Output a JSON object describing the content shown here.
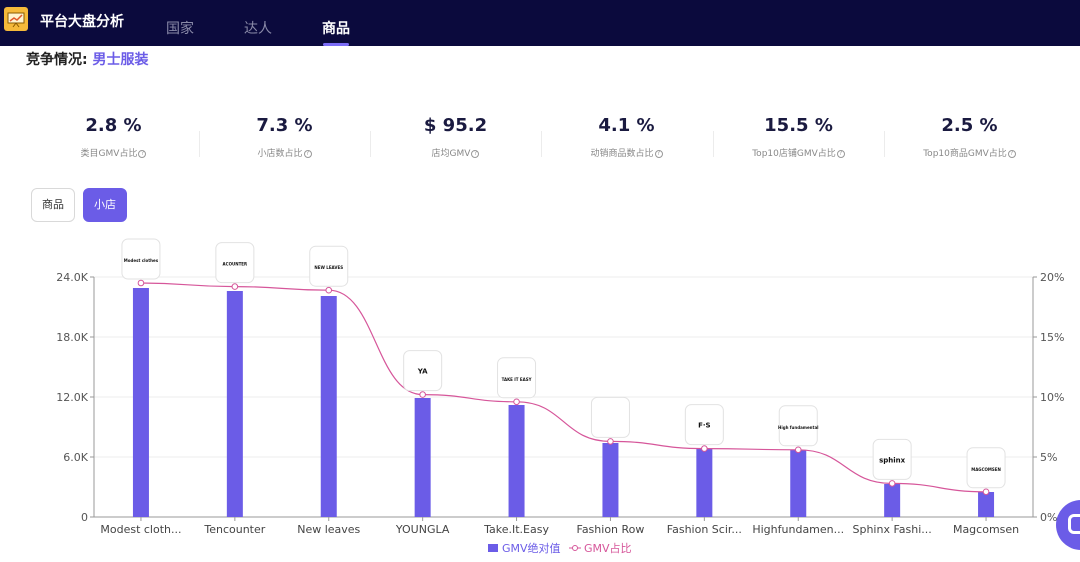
{
  "app": {
    "title": "平台大盘分析"
  },
  "nav": {
    "tabs": [
      "国家",
      "达人",
      "商品"
    ],
    "active": 2
  },
  "section": {
    "label": "竞争情况:",
    "category": "男士服装"
  },
  "stats": [
    {
      "value": "2.8 %",
      "label": "类目GMV占比"
    },
    {
      "value": "7.3 %",
      "label": "小店数占比"
    },
    {
      "value": "$ 95.2",
      "label": "店均GMV"
    },
    {
      "value": "4.1 %",
      "label": "动销商品数占比"
    },
    {
      "value": "15.5 %",
      "label": "Top10店铺GMV占比"
    },
    {
      "value": "2.5 %",
      "label": "Top10商品GMV占比"
    }
  ],
  "toggle": {
    "options": [
      "商品",
      "小店"
    ],
    "active": 1
  },
  "colors": {
    "accent": "#6b5ce7",
    "nav_bg": "#0b0a3d",
    "line": "#d6569a"
  },
  "chart_data": {
    "type": "bar",
    "categories": [
      "Modest cloth...",
      "Tencounter",
      "New leaves",
      "YOUNGLA",
      "Take.It.Easy",
      "Fashion Row",
      "Fashion Scir...",
      "Highfundamen...",
      "Sphinx Fashi...",
      "Magcomsen"
    ],
    "series": [
      {
        "name": "GMV绝对值",
        "type": "bar",
        "axis": "left",
        "values": [
          22900,
          22600,
          22100,
          11900,
          11200,
          7400,
          6800,
          6700,
          3300,
          2500
        ]
      },
      {
        "name": "GMV占比",
        "type": "line",
        "axis": "right",
        "values": [
          19.5,
          19.2,
          18.9,
          10.2,
          9.6,
          6.3,
          5.7,
          5.6,
          2.8,
          2.1
        ]
      }
    ],
    "y_left": {
      "ticks": [
        "0",
        "6.0K",
        "12.0K",
        "18.0K",
        "24.0K"
      ],
      "range": [
        0,
        24000
      ]
    },
    "y_right": {
      "ticks": [
        "0%",
        "5%",
        "10%",
        "15%",
        "20%"
      ],
      "range": [
        0,
        20
      ]
    },
    "shop_logos": [
      "Modest clothes",
      "ACOUNTER",
      "NEW LEAVES",
      "YA",
      "TAKE IT EASY",
      "",
      "F·S",
      "High fundamental",
      "sphinx",
      "MAGCOMSEN"
    ],
    "legend": "bottom-center"
  }
}
